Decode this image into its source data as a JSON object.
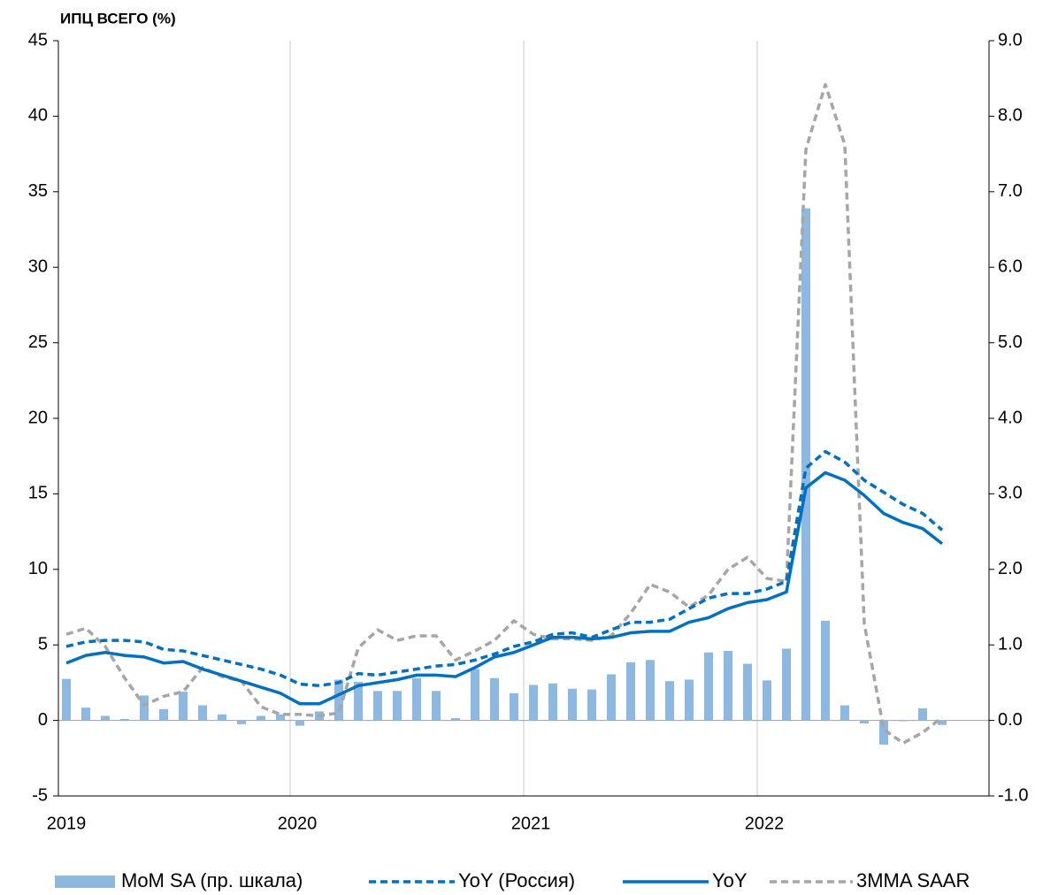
{
  "chart_data": {
    "type": "bar-line",
    "title": "ИПЦ ВСЕГО (%)",
    "categories": [
      "2019",
      null,
      null,
      null,
      null,
      null,
      null,
      null,
      null,
      null,
      null,
      null,
      "2020",
      null,
      null,
      null,
      null,
      null,
      null,
      null,
      null,
      null,
      null,
      null,
      "2021",
      null,
      null,
      null,
      null,
      null,
      null,
      null,
      null,
      null,
      null,
      null,
      "2022",
      null,
      null,
      null,
      null,
      null,
      null,
      null,
      null,
      null
    ],
    "series": [
      {
        "name": "MoM SA (пр. шкала)",
        "type": "bar",
        "axis": "y2",
        "color": "#8db8e0",
        "values": [
          0.55,
          0.17,
          0.06,
          0.02,
          0.33,
          0.15,
          0.38,
          0.2,
          0.08,
          -0.05,
          0.06,
          0.08,
          -0.07,
          0.12,
          0.54,
          0.51,
          0.39,
          0.39,
          0.56,
          0.39,
          0.03,
          0.68,
          0.56,
          0.36,
          0.47,
          0.49,
          0.42,
          0.41,
          0.61,
          0.77,
          0.8,
          0.52,
          0.54,
          0.9,
          0.92,
          0.75,
          0.53,
          0.95,
          6.78,
          1.32,
          0.2,
          -0.04,
          -0.32,
          -0.01,
          0.16,
          -0.06
        ]
      },
      {
        "name": "YoY (Россия)",
        "type": "line",
        "style": "dashed",
        "color": "#0070c0",
        "values": [
          4.9,
          5.2,
          5.3,
          5.3,
          5.2,
          4.7,
          4.6,
          4.3,
          4.0,
          3.7,
          3.4,
          3.0,
          2.4,
          2.3,
          2.5,
          3.1,
          3.0,
          3.2,
          3.4,
          3.6,
          3.7,
          4.0,
          4.4,
          4.9,
          5.2,
          5.7,
          5.8,
          5.5,
          6.0,
          6.5,
          6.5,
          6.7,
          7.4,
          8.1,
          8.4,
          8.4,
          8.7,
          9.2,
          16.7,
          17.8,
          17.1,
          15.9,
          15.1,
          14.3,
          13.7,
          12.6
        ]
      },
      {
        "name": "YoY",
        "type": "line",
        "style": "solid",
        "color": "#0070c0",
        "values": [
          3.8,
          4.3,
          4.5,
          4.3,
          4.2,
          3.8,
          3.9,
          3.4,
          3.0,
          2.6,
          2.2,
          1.8,
          1.1,
          1.1,
          1.7,
          2.3,
          2.5,
          2.7,
          3.0,
          3.0,
          2.9,
          3.5,
          4.2,
          4.5,
          5.0,
          5.5,
          5.5,
          5.4,
          5.5,
          5.8,
          5.9,
          5.9,
          6.5,
          6.8,
          7.4,
          7.8,
          8.0,
          8.5,
          15.4,
          16.4,
          15.9,
          14.9,
          13.7,
          13.1,
          12.7,
          11.7
        ]
      },
      {
        "name": "3MMA SAAR",
        "type": "line",
        "style": "dashed",
        "color": "#a6a6a6",
        "values": [
          5.7,
          6.1,
          4.9,
          2.8,
          1.0,
          1.6,
          1.9,
          3.5,
          2.9,
          2.6,
          0.9,
          0.4,
          0.4,
          0.3,
          0.5,
          4.8,
          6.0,
          5.3,
          5.6,
          5.6,
          4.0,
          4.6,
          5.3,
          6.6,
          5.7,
          5.4,
          5.4,
          5.3,
          5.6,
          7.1,
          9.0,
          8.5,
          7.5,
          8.3,
          10.0,
          10.8,
          9.4,
          9.2,
          37.8,
          42.1,
          38.1,
          6.4,
          -0.6,
          -1.5,
          -0.8,
          0.2
        ]
      }
    ],
    "ylim": [
      -5,
      45
    ],
    "yticks": [
      -5,
      0,
      5,
      10,
      15,
      20,
      25,
      30,
      35,
      40,
      45
    ],
    "y2lim": [
      -1,
      9
    ],
    "y2ticks": [
      {
        "value": -1,
        "label": "-1.0"
      },
      {
        "value": 0,
        "label": "0.0"
      },
      {
        "value": 1,
        "label": "1.0"
      },
      {
        "value": 2,
        "label": "2.0"
      },
      {
        "value": 3,
        "label": "3.0"
      },
      {
        "value": 4,
        "label": "4.0"
      },
      {
        "value": 5,
        "label": "5.0"
      },
      {
        "value": 6,
        "label": "6.0"
      },
      {
        "value": 7,
        "label": "7.0"
      },
      {
        "value": 8,
        "label": "8.0"
      },
      {
        "value": 9,
        "label": "9.0"
      }
    ],
    "grid": "x",
    "legend": "bottom"
  }
}
